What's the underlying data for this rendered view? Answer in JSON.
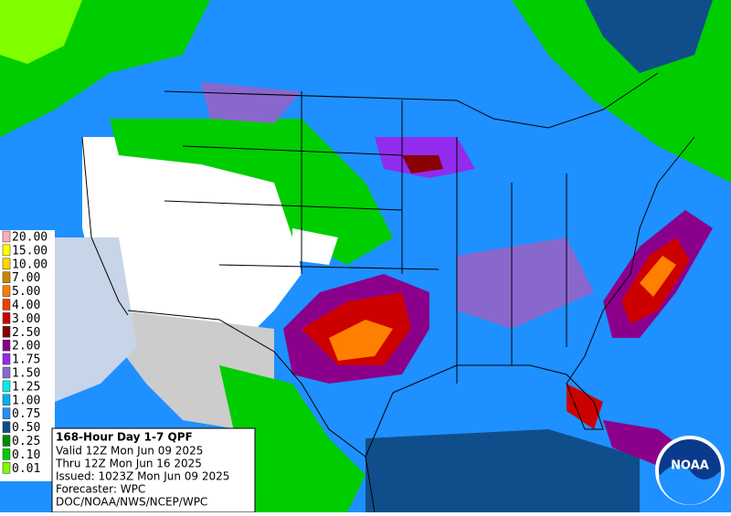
{
  "legend": {
    "items": [
      {
        "label": "20.00",
        "color": "#ffaeb9"
      },
      {
        "label": "15.00",
        "color": "#ffff00"
      },
      {
        "label": "10.00",
        "color": "#ffd700"
      },
      {
        "label": "7.00",
        "color": "#cd8500"
      },
      {
        "label": "5.00",
        "color": "#ff7f00"
      },
      {
        "label": "4.00",
        "color": "#ee4000"
      },
      {
        "label": "3.00",
        "color": "#cd0000"
      },
      {
        "label": "2.50",
        "color": "#8b0000"
      },
      {
        "label": "2.00",
        "color": "#8b008b"
      },
      {
        "label": "1.75",
        "color": "#912cee"
      },
      {
        "label": "1.50",
        "color": "#8968cd"
      },
      {
        "label": "1.25",
        "color": "#00eeee"
      },
      {
        "label": "1.00",
        "color": "#00b2ee"
      },
      {
        "label": "0.75",
        "color": "#1e90ff"
      },
      {
        "label": "0.50",
        "color": "#104e8b"
      },
      {
        "label": "0.25",
        "color": "#008b00"
      },
      {
        "label": "0.10",
        "color": "#00cd00"
      },
      {
        "label": "0.01",
        "color": "#7fff00"
      }
    ]
  },
  "info": {
    "title": "168-Hour Day 1-7 QPF",
    "lines": [
      "Valid 12Z Mon Jun 09 2025",
      "Thru 12Z Mon Jun 16 2025",
      "Issued: 1023Z Mon Jun 09 2025",
      "Forecaster: WPC",
      "DOC/NOAA/NWS/NCEP/WPC"
    ]
  },
  "logo": {
    "text": "NOAA"
  }
}
